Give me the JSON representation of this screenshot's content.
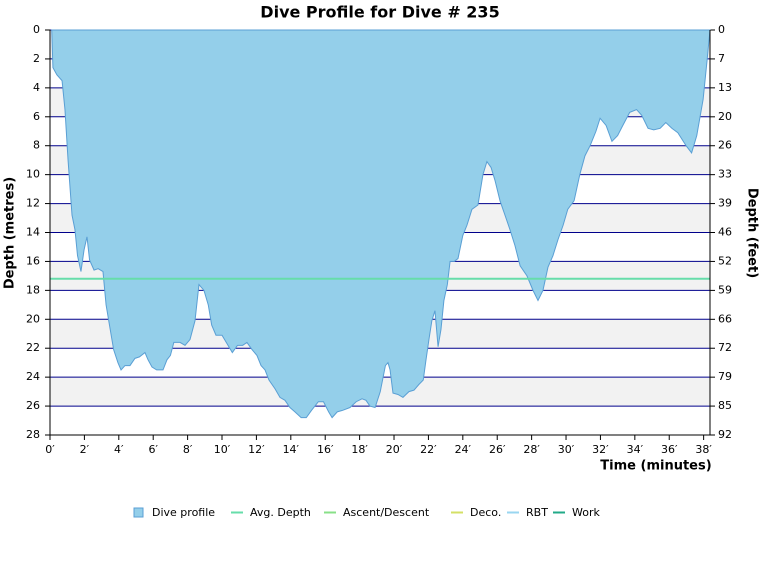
{
  "chart_data": {
    "type": "area",
    "title": "Dive Profile for Dive # 235",
    "x_label": "Time (minutes)",
    "y_label": "Depth (metres)",
    "y2_label": "Depth (feet)",
    "xlim": [
      0,
      38.37
    ],
    "ylim": [
      0,
      28
    ],
    "y2lim": [
      0,
      91.86
    ],
    "inverted_y": true,
    "grid": true,
    "xticks": [
      {
        "value": 0,
        "label": "0′"
      },
      {
        "value": 2,
        "label": "2′"
      },
      {
        "value": 4,
        "label": "4′"
      },
      {
        "value": 6,
        "label": "6′"
      },
      {
        "value": 8,
        "label": "8′"
      },
      {
        "value": 10,
        "label": "10′"
      },
      {
        "value": 12,
        "label": "12′"
      },
      {
        "value": 14,
        "label": "14′"
      },
      {
        "value": 16,
        "label": "16′"
      },
      {
        "value": 18,
        "label": "18′"
      },
      {
        "value": 20,
        "label": "20′"
      },
      {
        "value": 22,
        "label": "22′"
      },
      {
        "value": 24,
        "label": "24′"
      },
      {
        "value": 26,
        "label": "26′"
      },
      {
        "value": 28,
        "label": "28′"
      },
      {
        "value": 30,
        "label": "30′"
      },
      {
        "value": 32,
        "label": "32′"
      },
      {
        "value": 34,
        "label": "34′"
      },
      {
        "value": 36,
        "label": "36′"
      },
      {
        "value": 38,
        "label": "38′"
      }
    ],
    "yticks": [
      0,
      2,
      4,
      6,
      8,
      10,
      12,
      14,
      16,
      18,
      20,
      22,
      24,
      26,
      28
    ],
    "y2ticks": [
      0,
      {
        "value": 6.56,
        "label": "7"
      },
      {
        "value": 13.12,
        "label": "13"
      },
      {
        "value": 19.69,
        "label": "20"
      },
      {
        "value": 26.25,
        "label": "26"
      },
      {
        "value": 32.81,
        "label": "33"
      },
      {
        "value": 39.37,
        "label": "39"
      },
      {
        "value": 45.93,
        "label": "46"
      },
      {
        "value": 52.49,
        "label": "52"
      },
      {
        "value": 59.06,
        "label": "59"
      },
      {
        "value": 65.62,
        "label": "66"
      },
      {
        "value": 72.18,
        "label": "72"
      },
      {
        "value": 78.74,
        "label": "79"
      },
      {
        "value": 85.3,
        "label": "85"
      },
      {
        "value": 91.86,
        "label": "92"
      }
    ],
    "x": [
      0.1,
      0.17,
      0.4,
      0.7,
      0.87,
      1.05,
      1.28,
      1.45,
      1.6,
      1.8,
      1.98,
      2.15,
      2.3,
      2.56,
      2.8,
      3.08,
      3.26,
      3.5,
      3.7,
      3.95,
      4.13,
      4.36,
      4.65,
      4.94,
      5.2,
      5.52,
      5.7,
      5.93,
      6.2,
      6.57,
      6.8,
      7,
      7.2,
      7.56,
      7.85,
      8.14,
      8.43,
      8.66,
      8.95,
      9.2,
      9.4,
      9.65,
      10,
      10.35,
      10.6,
      10.9,
      11.2,
      11.45,
      11.75,
      12.03,
      12.27,
      12.5,
      12.73,
      13.08,
      13.37,
      13.66,
      13.95,
      14.24,
      14.6,
      14.9,
      15.2,
      15.6,
      15.9,
      16.2,
      16.4,
      16.7,
      17,
      17.44,
      17.8,
      18.14,
      18.37,
      18.6,
      18.9,
      19.2,
      19.5,
      19.65,
      19.77,
      19.94,
      20.23,
      20.52,
      20.87,
      21.16,
      21.45,
      21.7,
      21.86,
      22.03,
      22.2,
      22.38,
      22.56,
      22.73,
      22.9,
      23.1,
      23.26,
      23.5,
      23.72,
      24,
      24.24,
      24.53,
      24.88,
      25.17,
      25.4,
      25.64,
      25.87,
      26.16,
      26.45,
      26.74,
      27.03,
      27.33,
      27.73,
      28.08,
      28.37,
      28.66,
      28.95,
      29.24,
      29.53,
      29.83,
      30.1,
      30.47,
      30.8,
      31.1,
      31.4,
      31.74,
      31.98,
      32.33,
      32.67,
      33,
      33.3,
      33.7,
      34.1,
      34.4,
      34.77,
      35.1,
      35.47,
      35.8,
      36.16,
      36.5,
      36.98,
      37.3,
      37.6,
      37.97,
      38.2,
      38.37
    ],
    "series": [
      {
        "name": "Dive profile",
        "color": "#94cfea",
        "values": [
          0,
          2.6,
          3.1,
          3.5,
          5.5,
          9,
          12.8,
          13.8,
          15.6,
          16.7,
          15.2,
          14.3,
          15.9,
          16.6,
          16.5,
          16.7,
          19,
          20.7,
          22.1,
          23,
          23.5,
          23.2,
          23.2,
          22.7,
          22.6,
          22.3,
          22.8,
          23.3,
          23.5,
          23.5,
          22.8,
          22.5,
          21.6,
          21.6,
          21.8,
          21.4,
          20.1,
          17.6,
          18,
          19,
          20.4,
          21.1,
          21.1,
          21.8,
          22.3,
          21.8,
          21.8,
          21.6,
          22.1,
          22.5,
          23.2,
          23.5,
          24.2,
          24.8,
          25.4,
          25.6,
          26.1,
          26.4,
          26.8,
          26.8,
          26.3,
          25.7,
          25.7,
          26.4,
          26.8,
          26.4,
          26.3,
          26.1,
          25.7,
          25.5,
          25.6,
          26,
          26.1,
          25,
          23.2,
          23,
          23.5,
          25.1,
          25.2,
          25.4,
          25,
          24.9,
          24.5,
          24.2,
          22.8,
          21.4,
          20.1,
          19.4,
          21.9,
          20.7,
          18.7,
          17.6,
          16,
          16,
          15.8,
          14.2,
          13.5,
          12.4,
          12.1,
          10,
          9.1,
          9.5,
          10.4,
          11.8,
          12.8,
          13.8,
          14.9,
          16.3,
          17,
          18,
          18.7,
          18,
          16.4,
          15.6,
          14.5,
          13.5,
          12.4,
          11.8,
          10,
          8.7,
          8,
          7,
          6.1,
          6.6,
          7.7,
          7.3,
          6.6,
          5.7,
          5.5,
          5.9,
          6.8,
          6.9,
          6.8,
          6.4,
          6.8,
          7.1,
          8,
          8.5,
          7.3,
          4.8,
          2.1,
          0
        ]
      },
      {
        "name": "Avg. Depth",
        "color": "#66ddaa",
        "value": 17.2
      },
      {
        "name": "Ascent/Descent",
        "color": "#88e088"
      },
      {
        "name": "Deco.",
        "color": "#d4e066"
      },
      {
        "name": "RBT",
        "color": "#99d6f0"
      },
      {
        "name": "Work",
        "color": "#22aa88"
      }
    ]
  }
}
